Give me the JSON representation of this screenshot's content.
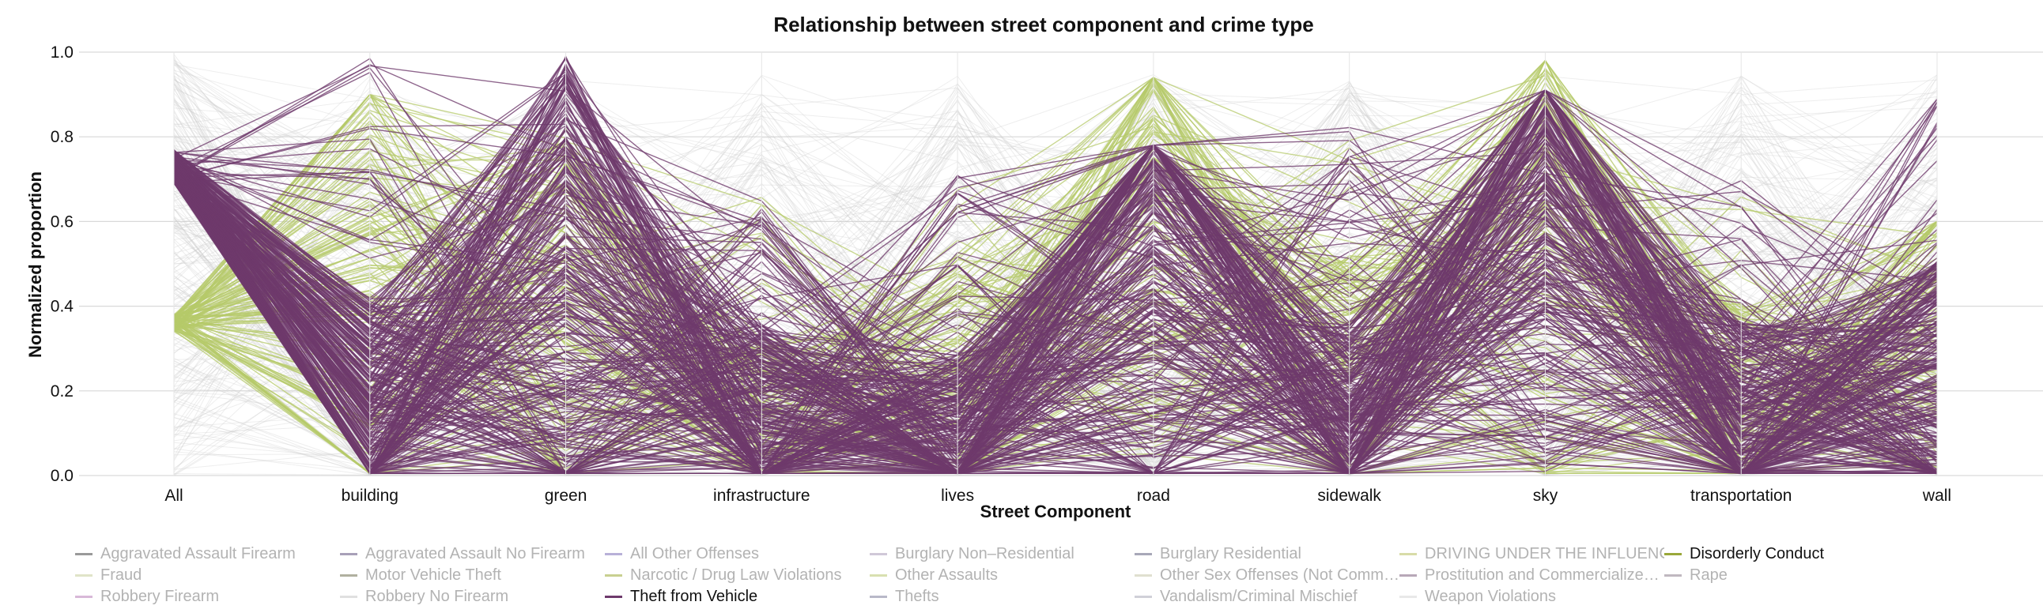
{
  "chart_data": {
    "type": "parallel-coordinates",
    "title": "Relationship between street component and crime type",
    "xlabel": "Street Component",
    "ylabel": "Normalized proportion",
    "ylim": [
      0,
      1
    ],
    "y_ticks": [
      "0.0",
      "0.2",
      "0.4",
      "0.6",
      "0.8",
      "1.0"
    ],
    "y_tick_values": [
      0,
      0.2,
      0.4,
      0.6,
      0.8,
      1.0
    ],
    "axes": [
      "All",
      "building",
      "green",
      "infrastructure",
      "lives",
      "road",
      "sidewalk",
      "sky",
      "transportation",
      "wall"
    ],
    "grid": true,
    "legend_position": "bottom",
    "colors": {
      "inactive": "#cfcfcf",
      "disorderly": "#b5c96a",
      "theft_vehicle": "#6e3a6c",
      "gridline": "#d9d9d9"
    },
    "highlighted": [
      "Theft from Vehicle",
      "Disorderly Conduct"
    ],
    "series": [
      {
        "name": "Theft from Vehicle",
        "approx_line_count": 300,
        "typical_values": [
          0.73,
          0.15,
          0.45,
          0.12,
          0.08,
          0.48,
          0.12,
          0.55,
          0.12,
          0.2
        ],
        "max_values": [
          0.77,
          1.0,
          1.0,
          0.68,
          0.72,
          0.78,
          0.83,
          0.91,
          0.75,
          0.89
        ]
      },
      {
        "name": "Disorderly Conduct",
        "approx_line_count": 120,
        "typical_values": [
          0.36,
          0.45,
          0.35,
          0.1,
          0.2,
          0.58,
          0.2,
          0.5,
          0.15,
          0.3
        ],
        "max_values": [
          0.38,
          0.9,
          0.82,
          0.7,
          0.73,
          0.94,
          0.96,
          0.98,
          0.72,
          0.6
        ]
      }
    ],
    "legend": [
      [
        "Aggravated Assault Firearm",
        "Aggravated Assault No Firearm",
        "All Other Offenses",
        "Burglary Non–Residential",
        "Burglary Residential",
        "DRIVING UNDER THE INFLUENCE",
        "Disorderly Conduct"
      ],
      [
        "Fraud",
        "Motor Vehicle Theft",
        "Narcotic / Drug Law Violations",
        "Other Assaults",
        "Other Sex Offenses (Not Comm…",
        "Prostitution and Commercialize…",
        "Rape"
      ],
      [
        "Robbery Firearm",
        "Robbery No Firearm",
        "Theft from Vehicle",
        "Thefts",
        "Vandalism/Criminal Mischief",
        "Weapon Violations"
      ]
    ],
    "legend_colors": [
      [
        "#9a9a9a",
        "#a8a0b8",
        "#b8b0d8",
        "#d0c8d8",
        "#a8a8b8",
        "#d8dca8",
        "#9aa83a"
      ],
      [
        "#e0e4c8",
        "#b0b0a0",
        "#c8d090",
        "#d8e0b0",
        "#e0e0d0",
        "#b8a8b8",
        "#c0b8c0"
      ],
      [
        "#d8b8d8",
        "#e0e0e0",
        "#6e3a6c",
        "#b8b8c8",
        "#d0d0d8",
        "#e8e8e8"
      ]
    ]
  }
}
